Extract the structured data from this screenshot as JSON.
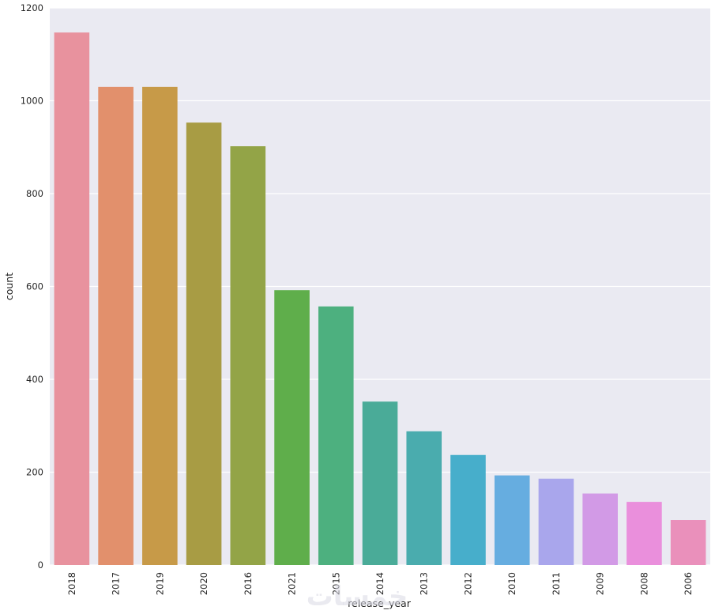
{
  "chart_data": {
    "type": "bar",
    "categories": [
      "2018",
      "2017",
      "2019",
      "2020",
      "2016",
      "2021",
      "2015",
      "2014",
      "2013",
      "2012",
      "2010",
      "2011",
      "2009",
      "2008",
      "2006"
    ],
    "values": [
      1147,
      1030,
      1030,
      953,
      902,
      592,
      557,
      352,
      288,
      237,
      193,
      186,
      154,
      136,
      97
    ],
    "title": "",
    "xlabel": "release_year",
    "ylabel": "count",
    "ylim": [
      0,
      1200
    ],
    "yticks": [
      "0",
      "200",
      "400",
      "600",
      "800",
      "1000",
      "1200"
    ],
    "grid": true,
    "legend": "none",
    "colors": [
      "#e8929e",
      "#e2906c",
      "#c79a48",
      "#a89c44",
      "#93a447",
      "#5fae4b",
      "#4db07f",
      "#4aab98",
      "#4aacae",
      "#47aecb",
      "#66ade0",
      "#a9a6ec",
      "#d29ae6",
      "#ea8fdc",
      "#ea90bb"
    ],
    "background": "#eaeaf2"
  },
  "watermark_text": "خمسات"
}
